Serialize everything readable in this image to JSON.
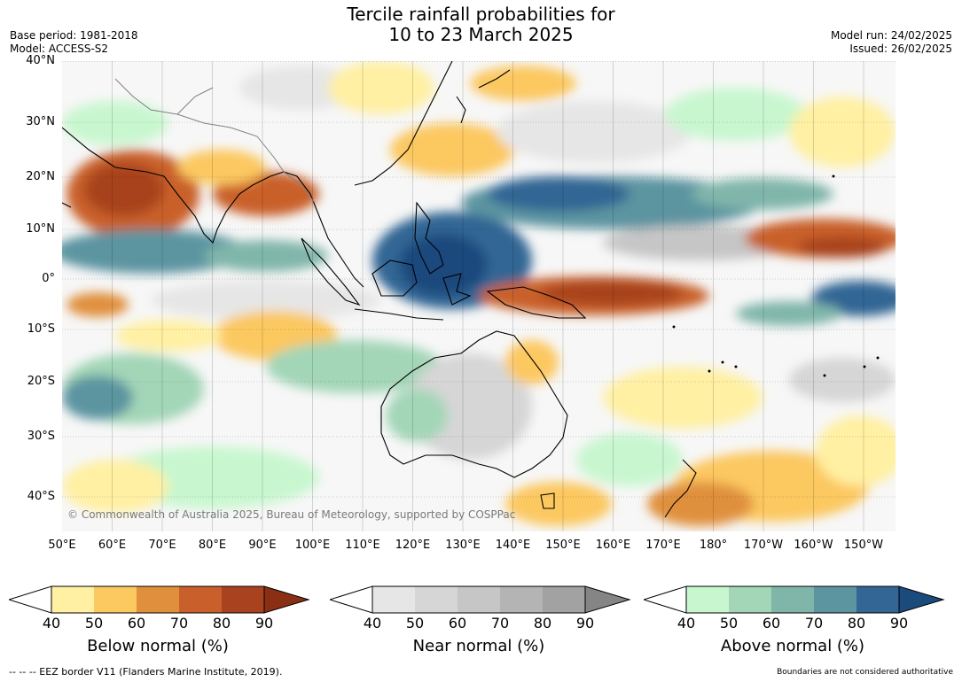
{
  "title": {
    "line1": "Tercile rainfall probabilities for",
    "line2": "10 to 23 March 2025"
  },
  "meta": {
    "base_period": "Base period: 1981-2018",
    "model": "Model: ACCESS-S2",
    "model_run": "Model run: 24/02/2025",
    "issued": "Issued: 26/02/2025"
  },
  "lat_labels": [
    "40°N",
    "30°N",
    "20°N",
    "10°N",
    "0°",
    "10°S",
    "20°S",
    "30°S",
    "40°S"
  ],
  "lon_labels": [
    "50°E",
    "60°E",
    "70°E",
    "80°E",
    "90°E",
    "100°E",
    "110°E",
    "120°E",
    "130°E",
    "140°E",
    "150°E",
    "160°E",
    "170°E",
    "180°",
    "170°W",
    "160°W",
    "150°W"
  ],
  "copyright": "© Commonwealth of Australia 2025, Bureau of Meteorology, supported by COSPPac",
  "colorbars": [
    {
      "label": "Below normal (%)",
      "ticks": [
        "40",
        "50",
        "60",
        "70",
        "80",
        "90"
      ],
      "colors": [
        "#fff0a3",
        "#fcc860",
        "#e0903c",
        "#c9602c",
        "#a8421f"
      ],
      "tip": "#8b2f14"
    },
    {
      "label": "Near normal (%)",
      "ticks": [
        "40",
        "50",
        "60",
        "70",
        "80",
        "90"
      ],
      "colors": [
        "#e6e6e6",
        "#d6d6d6",
        "#c6c6c6",
        "#b4b4b4",
        "#a2a2a2"
      ],
      "tip": "#858585"
    },
    {
      "label": "Above normal (%)",
      "ticks": [
        "40",
        "50",
        "60",
        "70",
        "80",
        "90"
      ],
      "colors": [
        "#c8f7cf",
        "#a3d6b7",
        "#80b6aa",
        "#5c94a0",
        "#336694"
      ],
      "tip": "#1b4a7d"
    }
  ],
  "footer": {
    "eez": "--  --  -- EEZ border V11 (Flanders Marine Institute, 2019).",
    "disclaimer": "Boundaries are not considered authoritative"
  }
}
